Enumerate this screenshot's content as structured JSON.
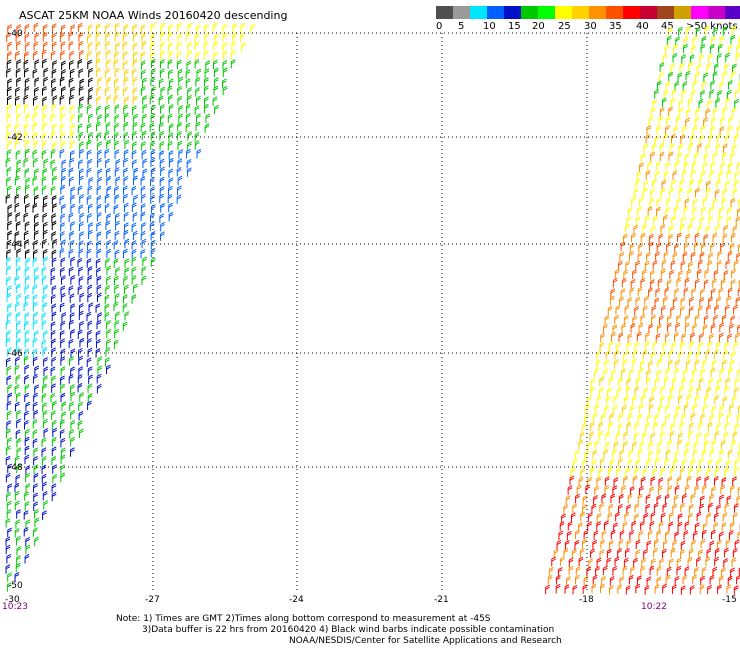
{
  "title": "ASCAT 25KM NOAA Winds 20160420 descending",
  "speed_scale": {
    "colors": [
      "#505050",
      "#9a9a9a",
      "#00e5ff",
      "#0060ff",
      "#0010c8",
      "#00c800",
      "#00ff00",
      "#ffff00",
      "#ffd200",
      "#ff9000",
      "#ff5000",
      "#ff0000",
      "#c80032",
      "#a0461e",
      "#d0a000",
      "#ff00ff",
      "#c800c8",
      "#5a00c8"
    ],
    "tick_labels": [
      "0",
      "5",
      "10",
      "15",
      "20",
      "25",
      "30",
      "35",
      "40",
      "45",
      ">50 knots"
    ]
  },
  "map": {
    "lat_labels": [
      "-40",
      "-42",
      "-44",
      "-46",
      "-48",
      "-50"
    ],
    "lon_labels": [
      "-30",
      "-27",
      "-24",
      "-21",
      "-18",
      "-15"
    ],
    "left_time": "10:23",
    "right_time": "10:22"
  },
  "footer": {
    "line1": "Note: 1) Times are GMT 2)Times along bottom correspond to measurement at -45S",
    "line2": "3)Data buffer is 22 hrs from 20160420 4) Black wind barbs indicate possible contamination",
    "line3": "NOAA/NESDIS/Center for Satellite Applications and Research"
  }
}
